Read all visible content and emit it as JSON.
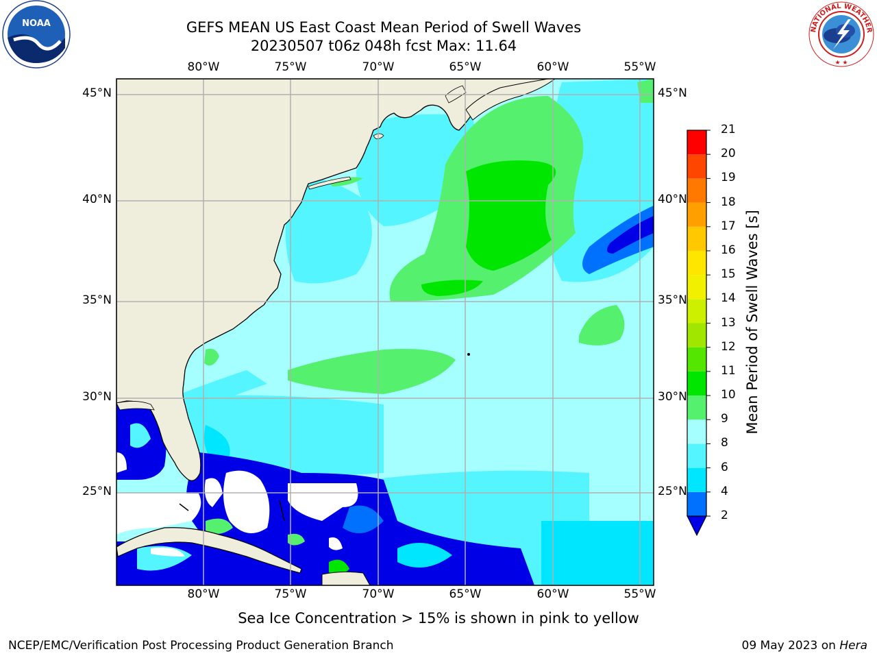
{
  "header": {
    "title_line1": "GEFS MEAN US East Coast Mean Period of Swell Waves",
    "title_line2": "20230507 t06z 048h fcst   Max: 11.64"
  },
  "logos": {
    "left": {
      "icon": "noaa-logo",
      "text": "NOAA"
    },
    "right": {
      "icon": "nws-logo",
      "ring_text": "NATIONAL WEATHER SERVICE"
    }
  },
  "map": {
    "lon_labels": [
      "80°W",
      "75°W",
      "70°W",
      "65°W",
      "60°W",
      "55°W"
    ],
    "lat_labels": [
      "45°N",
      "40°N",
      "35°N",
      "30°N",
      "25°N"
    ],
    "colors": {
      "land": "#efeddc",
      "grid": "#b0b0b0",
      "coast": "#000000"
    }
  },
  "colorbar": {
    "label": "Mean Period of Swell Waves [s]",
    "ticks": [
      "2",
      "4",
      "6",
      "8",
      "9",
      "10",
      "11",
      "12",
      "13",
      "14",
      "15",
      "16",
      "17",
      "18",
      "19",
      "20",
      "21"
    ],
    "colors": [
      "#0000e6",
      "#0070ff",
      "#00e6ff",
      "#55f5ff",
      "#a5ffff",
      "#55f06e",
      "#00e600",
      "#55e600",
      "#a0e600",
      "#cdf000",
      "#f0f000",
      "#ffe600",
      "#ffc800",
      "#ffa000",
      "#ff7800",
      "#ff4600",
      "#ff0000"
    ]
  },
  "footer": {
    "note": "Sea Ice Concentration > 15% is shown in pink to yellow",
    "left": "NCEP/EMC/Verification Post Processing Product Generation Branch",
    "right_date": "09 May 2023 on ",
    "right_host": "Hera"
  }
}
